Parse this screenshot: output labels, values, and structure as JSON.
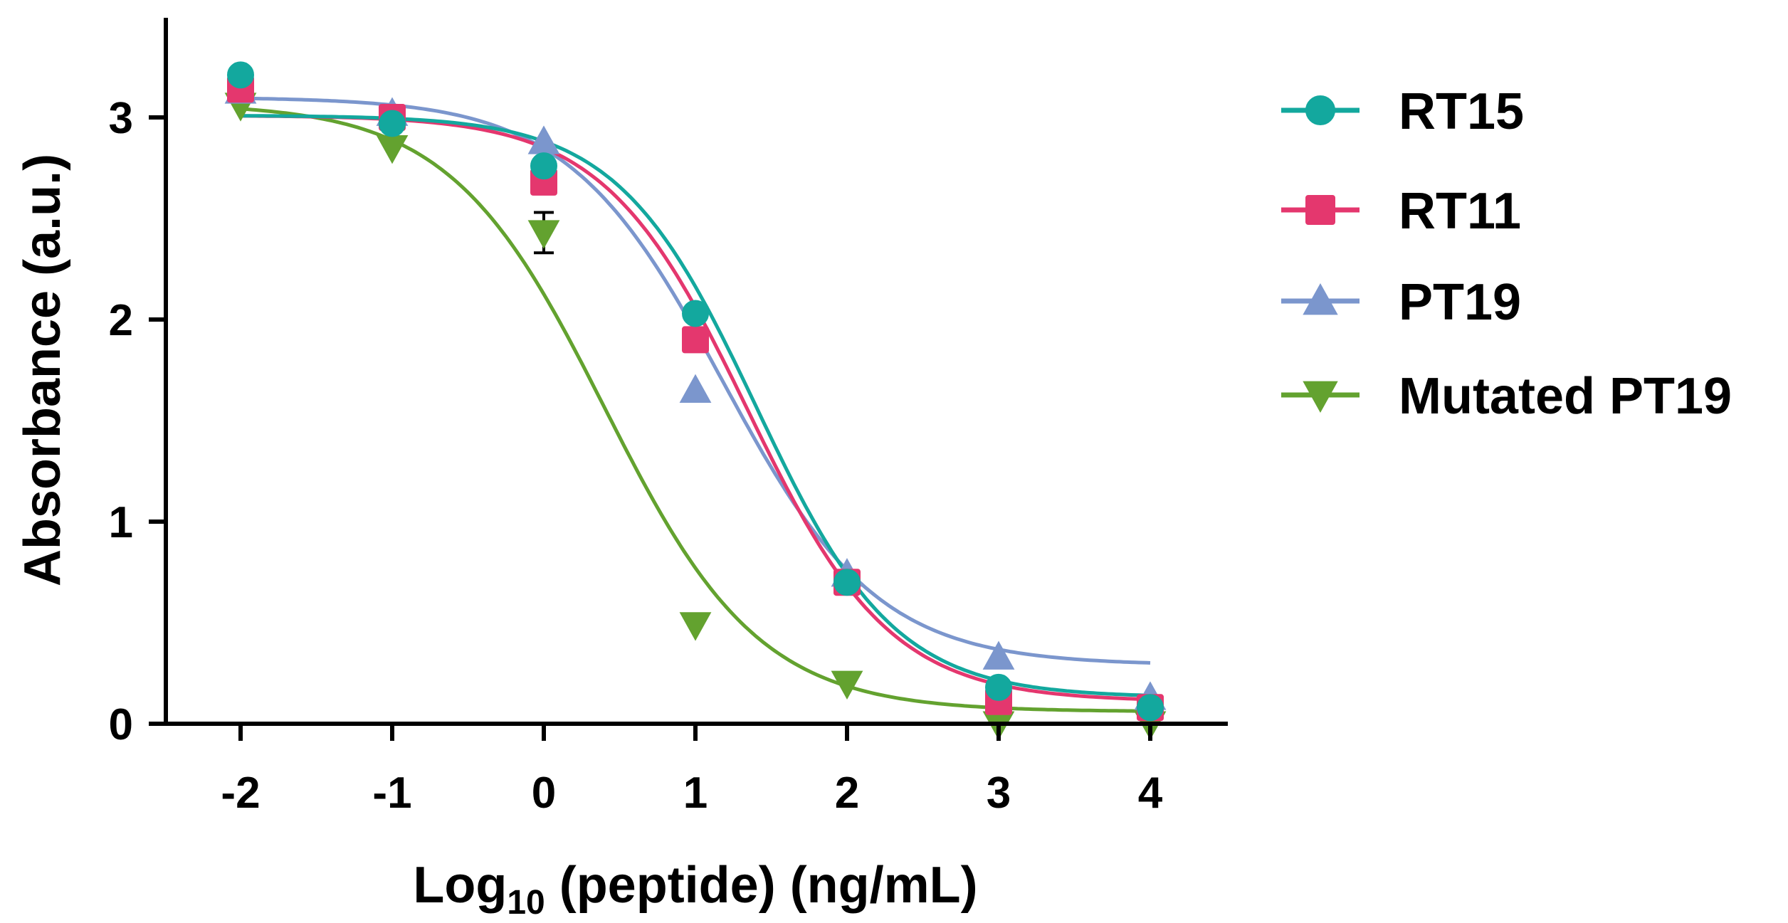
{
  "chart_data": {
    "type": "line",
    "title": "",
    "xlabel_main": "Log",
    "xlabel_sub": "10",
    "xlabel_rest": " (peptide) (ng/mL)",
    "ylabel": "Absorbance (a.u.)",
    "xlim": [
      -2.5,
      4.5
    ],
    "ylim": [
      0,
      3.5
    ],
    "xticks": [
      -2,
      -1,
      0,
      1,
      2,
      3,
      4
    ],
    "xtick_labels": [
      "-2",
      "-1",
      "0",
      "1",
      "2",
      "3",
      "4"
    ],
    "yticks": [
      0,
      1,
      2,
      3
    ],
    "ytick_labels": [
      "0",
      "1",
      "2",
      "3"
    ],
    "x": [
      -2,
      -1,
      0,
      1,
      2,
      3,
      4
    ],
    "legend_position": "right",
    "series": [
      {
        "name": "RT15",
        "color": "#13a89e",
        "marker": "circle",
        "values": [
          3.21,
          2.97,
          2.76,
          2.03,
          0.7,
          0.18,
          0.08
        ],
        "errors": [
          0,
          0,
          0,
          0,
          0,
          0,
          0
        ],
        "fit": {
          "top": 3.01,
          "bottom": 0.13,
          "ec50_log": 1.4,
          "hill": 0.95
        }
      },
      {
        "name": "RT11",
        "color": "#e4376e",
        "marker": "square",
        "values": [
          3.14,
          3.0,
          2.68,
          1.9,
          0.7,
          0.11,
          0.08
        ],
        "errors": [
          0,
          0,
          0,
          0,
          0,
          0,
          0
        ],
        "fit": {
          "top": 3.01,
          "bottom": 0.11,
          "ec50_log": 1.34,
          "hill": 0.92
        }
      },
      {
        "name": "PT19",
        "color": "#7b96cd",
        "marker": "triangle-up",
        "values": [
          3.13,
          3.02,
          2.88,
          1.65,
          0.74,
          0.33,
          0.13
        ],
        "errors": [
          0,
          0,
          0,
          0,
          0,
          0,
          0
        ],
        "fit": {
          "top": 3.1,
          "bottom": 0.29,
          "ec50_log": 1.18,
          "hill": 0.85
        }
      },
      {
        "name": "Mutated PT19",
        "color": "#63a22f",
        "marker": "triangle-down",
        "values": [
          3.06,
          2.85,
          2.43,
          0.49,
          0.2,
          0.0,
          0.0
        ],
        "errors": [
          0,
          0,
          0.1,
          0,
          0,
          0,
          0
        ],
        "fit": {
          "top": 3.07,
          "bottom": 0.06,
          "ec50_log": 0.4,
          "hill": 0.85
        }
      }
    ]
  }
}
